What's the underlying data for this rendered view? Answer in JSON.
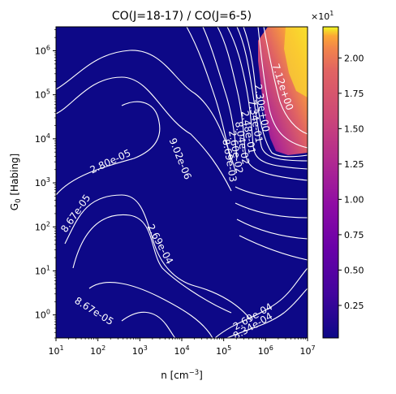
{
  "chart_data": {
    "type": "heatmap",
    "title": "CO(J=18-17) / CO(J=6-5)",
    "xlabel": "n [cm",
    "xlabel_sup": "−3",
    "xlabel_close": "]",
    "ylabel": "G",
    "ylabel_sub": "0",
    "ylabel_rest": " [Habing]",
    "x_scale": "log",
    "y_scale": "log",
    "xlim": [
      10,
      10000000
    ],
    "ylim": [
      0.3,
      3500000
    ],
    "x_ticks": [
      {
        "value": 10,
        "base": "10",
        "exp": "1"
      },
      {
        "value": 100,
        "base": "10",
        "exp": "2"
      },
      {
        "value": 1000,
        "base": "10",
        "exp": "3"
      },
      {
        "value": 10000,
        "base": "10",
        "exp": "4"
      },
      {
        "value": 100000,
        "base": "10",
        "exp": "5"
      },
      {
        "value": 1000000,
        "base": "10",
        "exp": "6"
      },
      {
        "value": 10000000,
        "base": "10",
        "exp": "7"
      }
    ],
    "y_ticks": [
      {
        "value": 1,
        "base": "10",
        "exp": "0"
      },
      {
        "value": 10,
        "base": "10",
        "exp": "1"
      },
      {
        "value": 100,
        "base": "10",
        "exp": "2"
      },
      {
        "value": 1000,
        "base": "10",
        "exp": "3"
      },
      {
        "value": 10000,
        "base": "10",
        "exp": "4"
      },
      {
        "value": 100000,
        "base": "10",
        "exp": "5"
      },
      {
        "value": 1000000,
        "base": "10",
        "exp": "6"
      }
    ],
    "colormap": "plasma",
    "colorbar": {
      "range": [
        0.02,
        2.22
      ],
      "ticks": [
        "0.25",
        "0.50",
        "0.75",
        "1.00",
        "1.25",
        "1.50",
        "1.75",
        "2.00"
      ],
      "tick_values": [
        0.25,
        0.5,
        0.75,
        1.0,
        1.25,
        1.5,
        1.75,
        2.0
      ],
      "multiplier_base": "×10",
      "multiplier_exp": "1"
    },
    "contour_color": "#ffffff",
    "contour_labels": [
      {
        "text": "2.80e-05",
        "x": 200,
        "y": 3000,
        "angle": -25
      },
      {
        "text": "9.02e-06",
        "x": 9000,
        "y": 3500,
        "angle": 68
      },
      {
        "text": "8.67e-05",
        "x": 30,
        "y": 200,
        "angle": -55
      },
      {
        "text": "2.69e-04",
        "x": 3000,
        "y": 40,
        "angle": 62
      },
      {
        "text": "8.67e-05",
        "x": 80,
        "y": 1.2,
        "angle": 32
      },
      {
        "text": "2.69e-04",
        "x": 500000,
        "y": 0.9,
        "angle": -30
      },
      {
        "text": "8.34e-04",
        "x": 500000,
        "y": 0.55,
        "angle": -30
      },
      {
        "text": "7.12e+00",
        "x": 2500000,
        "y": 150000,
        "angle": 72
      },
      {
        "text": "2.30e+00",
        "x": 800000,
        "y": 50000,
        "angle": 80
      },
      {
        "text": "7.34e-01",
        "x": 560000,
        "y": 25000,
        "angle": 80
      },
      {
        "text": "2.48e-01",
        "x": 380000,
        "y": 14000,
        "angle": 80
      },
      {
        "text": "8.04e-02",
        "x": 270000,
        "y": 8000,
        "angle": 80
      },
      {
        "text": "2.60e-02",
        "x": 190000,
        "y": 5000,
        "angle": 80
      },
      {
        "text": "8.69e-03",
        "x": 135000,
        "y": 3200,
        "angle": 80
      }
    ]
  }
}
